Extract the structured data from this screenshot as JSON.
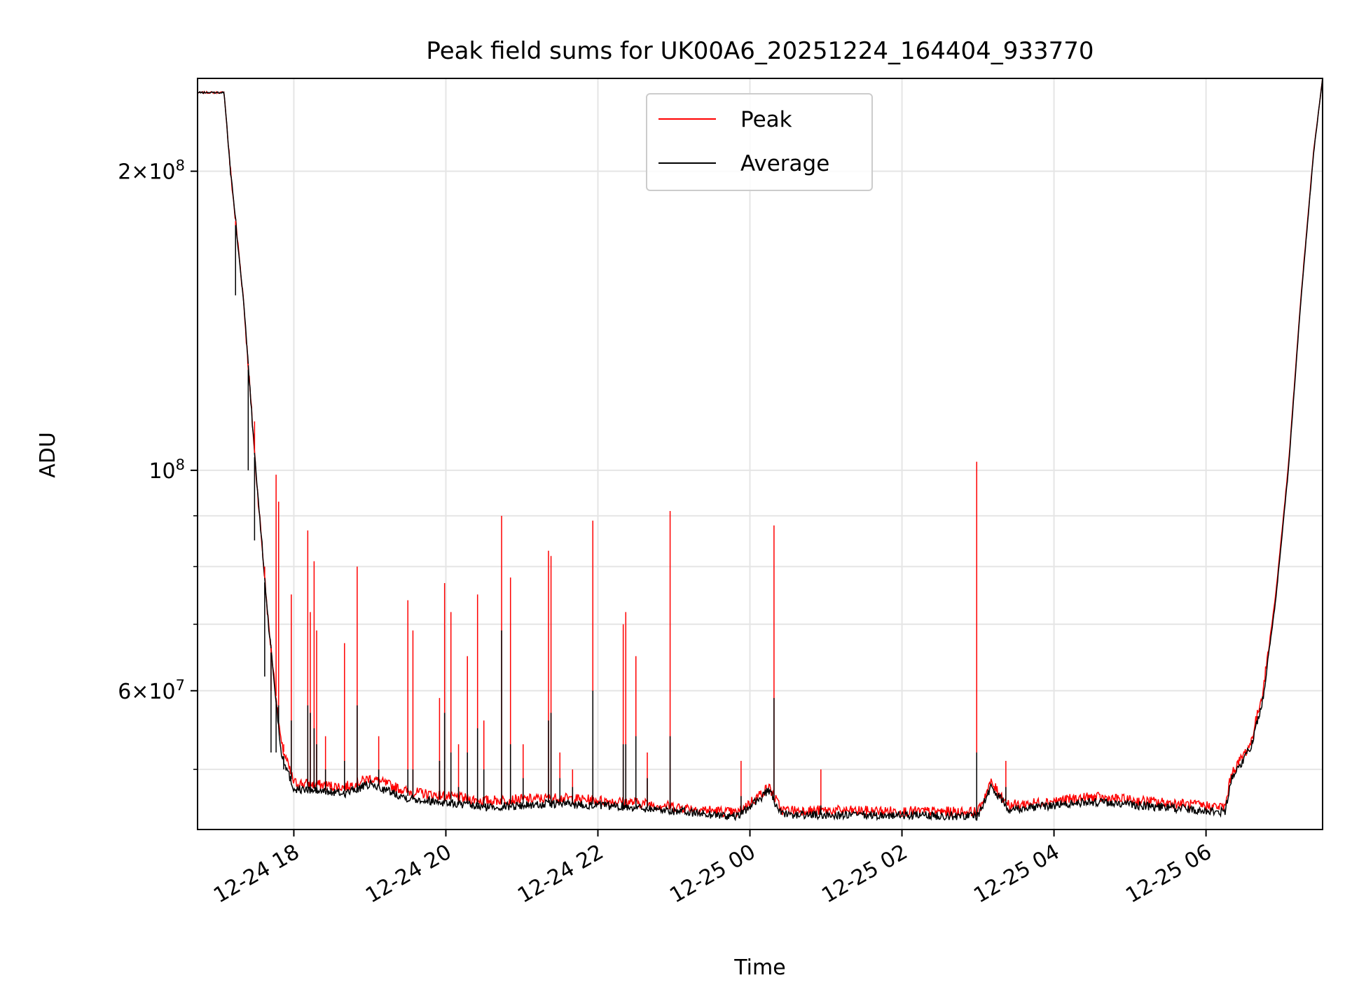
{
  "chart_data": {
    "type": "line",
    "title": "Peak field sums for UK00A6_20251224_164404_933770",
    "xlabel": "Time",
    "ylabel": "ADU",
    "y_scale": "log",
    "xlim": [
      "2025-12-24 16:44",
      "2025-12-25 07:32"
    ],
    "ylim": [
      43500000,
      248000000
    ],
    "grid": true,
    "legend_position": "top-center",
    "x_ticks": [
      {
        "time": "2025-12-24 18:00",
        "label": "12-24 18"
      },
      {
        "time": "2025-12-24 20:00",
        "label": "12-24 20"
      },
      {
        "time": "2025-12-24 22:00",
        "label": "12-24 22"
      },
      {
        "time": "2025-12-25 00:00",
        "label": "12-25 00"
      },
      {
        "time": "2025-12-25 02:00",
        "label": "12-25 02"
      },
      {
        "time": "2025-12-25 04:00",
        "label": "12-25 04"
      },
      {
        "time": "2025-12-25 06:00",
        "label": "12-25 06"
      }
    ],
    "y_ticks": [
      {
        "value": 200000000,
        "base": "2×10",
        "exp": "8"
      },
      {
        "value": 100000000,
        "base": "10",
        "exp": "8"
      },
      {
        "value": 60000000,
        "base": "6×10",
        "exp": "7"
      }
    ],
    "y_minor_ticks": [
      50000000,
      70000000,
      80000000,
      90000000
    ],
    "series": [
      {
        "name": "Peak",
        "color": "#ff0000",
        "points": [
          [
            "2025-12-24 16:44",
            240000000
          ],
          [
            "2025-12-24 17:05",
            240000000
          ],
          [
            "2025-12-24 17:10",
            200000000
          ],
          [
            "2025-12-24 17:20",
            150000000
          ],
          [
            "2025-12-24 17:30",
            100000000
          ],
          [
            "2025-12-24 17:40",
            70000000
          ],
          [
            "2025-12-24 17:50",
            53000000
          ],
          [
            "2025-12-24 18:00",
            48500000
          ],
          [
            "2025-12-24 18:40",
            48000000
          ],
          [
            "2025-12-24 19:00",
            49000000
          ],
          [
            "2025-12-24 19:30",
            47500000
          ],
          [
            "2025-12-24 20:30",
            46500000
          ],
          [
            "2025-12-24 21:30",
            46800000
          ],
          [
            "2025-12-24 22:30",
            46300000
          ],
          [
            "2025-12-24 23:50",
            45200000
          ],
          [
            "2025-12-25 00:15",
            48000000
          ],
          [
            "2025-12-25 00:25",
            45500000
          ],
          [
            "2025-12-25 03:00",
            45300000
          ],
          [
            "2025-12-25 03:10",
            48500000
          ],
          [
            "2025-12-25 03:25",
            46000000
          ],
          [
            "2025-12-25 04:30",
            46900000
          ],
          [
            "2025-12-25 06:15",
            45800000
          ],
          [
            "2025-12-25 06:20",
            49500000
          ],
          [
            "2025-12-25 06:35",
            53000000
          ],
          [
            "2025-12-25 06:45",
            60000000
          ],
          [
            "2025-12-25 06:55",
            75000000
          ],
          [
            "2025-12-25 07:05",
            101000000
          ],
          [
            "2025-12-25 07:15",
            150000000
          ],
          [
            "2025-12-25 07:25",
            210000000
          ],
          [
            "2025-12-25 07:32",
            248000000
          ]
        ]
      },
      {
        "name": "Average",
        "color": "#000000",
        "points": [
          [
            "2025-12-24 16:44",
            240000000
          ],
          [
            "2025-12-24 17:05",
            240000000
          ],
          [
            "2025-12-24 17:10",
            200000000
          ],
          [
            "2025-12-24 17:20",
            150000000
          ],
          [
            "2025-12-24 17:30",
            100000000
          ],
          [
            "2025-12-24 17:40",
            70000000
          ],
          [
            "2025-12-24 17:50",
            52000000
          ],
          [
            "2025-12-24 18:00",
            47800000
          ],
          [
            "2025-12-24 18:40",
            47300000
          ],
          [
            "2025-12-24 19:00",
            48300000
          ],
          [
            "2025-12-24 19:30",
            46800000
          ],
          [
            "2025-12-24 20:30",
            45800000
          ],
          [
            "2025-12-24 21:30",
            46200000
          ],
          [
            "2025-12-24 22:30",
            45800000
          ],
          [
            "2025-12-24 23:50",
            44800000
          ],
          [
            "2025-12-25 00:15",
            47600000
          ],
          [
            "2025-12-25 00:25",
            45000000
          ],
          [
            "2025-12-25 03:00",
            44900000
          ],
          [
            "2025-12-25 03:10",
            48000000
          ],
          [
            "2025-12-25 03:25",
            45600000
          ],
          [
            "2025-12-25 04:30",
            46400000
          ],
          [
            "2025-12-25 06:15",
            45300000
          ],
          [
            "2025-12-25 06:20",
            49000000
          ],
          [
            "2025-12-25 06:35",
            52500000
          ],
          [
            "2025-12-25 06:45",
            59000000
          ],
          [
            "2025-12-25 06:55",
            74000000
          ],
          [
            "2025-12-25 07:05",
            100000000
          ],
          [
            "2025-12-25 07:15",
            149000000
          ],
          [
            "2025-12-25 07:25",
            209000000
          ],
          [
            "2025-12-25 07:32",
            248000000
          ]
        ]
      }
    ],
    "spikes": [
      [
        "2025-12-24 17:14",
        173000000,
        150000000
      ],
      [
        "2025-12-24 17:24",
        128000000,
        100000000
      ],
      [
        "2025-12-24 17:29",
        112000000,
        85000000
      ],
      [
        "2025-12-24 17:37",
        80000000,
        62000000
      ],
      [
        "2025-12-24 17:42",
        60000000,
        52000000
      ],
      [
        "2025-12-24 17:46",
        99000000,
        52000000
      ],
      [
        "2025-12-24 17:48",
        93000000,
        58000000
      ],
      [
        "2025-12-24 17:52",
        53000000,
        50000000
      ],
      [
        "2025-12-24 17:58",
        75000000,
        56000000
      ],
      [
        "2025-12-24 18:11",
        87000000,
        58000000
      ],
      [
        "2025-12-24 18:13",
        72000000,
        57000000
      ],
      [
        "2025-12-24 18:16",
        81000000,
        55000000
      ],
      [
        "2025-12-24 18:18",
        69000000,
        53000000
      ],
      [
        "2025-12-24 18:25",
        54000000,
        50000000
      ],
      [
        "2025-12-24 18:40",
        67000000,
        51000000
      ],
      [
        "2025-12-24 18:50",
        80000000,
        58000000
      ],
      [
        "2025-12-24 19:07",
        54000000,
        50000000
      ],
      [
        "2025-12-24 19:30",
        74000000,
        50000000
      ],
      [
        "2025-12-24 19:34",
        69000000,
        50000000
      ],
      [
        "2025-12-24 19:55",
        59000000,
        51000000
      ],
      [
        "2025-12-24 19:59",
        77000000,
        57000000
      ],
      [
        "2025-12-24 20:04",
        72000000,
        52000000
      ],
      [
        "2025-12-24 20:10",
        53000000,
        48000000
      ],
      [
        "2025-12-24 20:17",
        65000000,
        52000000
      ],
      [
        "2025-12-24 20:25",
        75000000,
        55000000
      ],
      [
        "2025-12-24 20:30",
        56000000,
        50000000
      ],
      [
        "2025-12-24 20:44",
        90000000,
        69000000
      ],
      [
        "2025-12-24 20:51",
        78000000,
        53000000
      ],
      [
        "2025-12-24 21:01",
        53000000,
        49000000
      ],
      [
        "2025-12-24 21:21",
        83000000,
        56000000
      ],
      [
        "2025-12-24 21:23",
        82000000,
        57000000
      ],
      [
        "2025-12-24 21:30",
        52000000,
        49000000
      ],
      [
        "2025-12-24 21:40",
        50000000,
        48000000
      ],
      [
        "2025-12-24 21:56",
        89000000,
        60000000
      ],
      [
        "2025-12-24 22:20",
        70000000,
        53000000
      ],
      [
        "2025-12-24 22:22",
        72000000,
        53000000
      ],
      [
        "2025-12-24 22:30",
        65000000,
        54000000
      ],
      [
        "2025-12-24 22:39",
        52000000,
        49000000
      ],
      [
        "2025-12-24 22:57",
        91000000,
        54000000
      ],
      [
        "2025-12-24 23:53",
        51000000,
        47000000
      ],
      [
        "2025-12-25 00:19",
        88000000,
        59000000
      ],
      [
        "2025-12-25 00:56",
        50000000,
        46000000
      ],
      [
        "2025-12-25 02:59",
        102000000,
        52000000
      ],
      [
        "2025-12-25 03:22",
        51000000,
        48000000
      ]
    ]
  },
  "legend": [
    {
      "label": "Peak",
      "color": "#ff0000"
    },
    {
      "label": "Average",
      "color": "#000000"
    }
  ]
}
